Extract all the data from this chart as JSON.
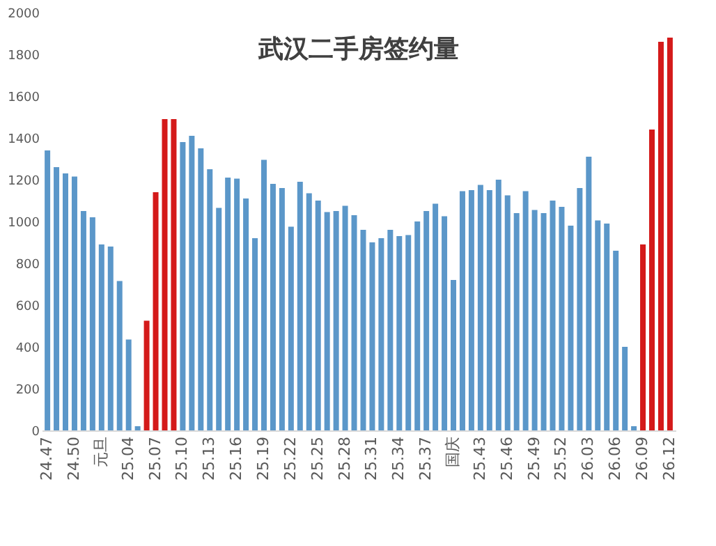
{
  "chart_data": {
    "type": "bar",
    "title": "武汉二手房签约量",
    "categories": [
      "24.47",
      null,
      null,
      "24.50",
      null,
      null,
      "元旦",
      null,
      null,
      "25.04",
      null,
      null,
      "25.07",
      null,
      null,
      "25.10",
      null,
      null,
      "25.13",
      null,
      null,
      "25.16",
      null,
      null,
      "25.19",
      null,
      null,
      "25.22",
      null,
      null,
      "25.25",
      null,
      null,
      "25.28",
      null,
      null,
      "25.31",
      null,
      null,
      "25.34",
      null,
      null,
      "25.37",
      null,
      null,
      "国庆",
      null,
      null,
      "25.43",
      null,
      null,
      "25.46",
      null,
      null,
      "25.49",
      null,
      null,
      "25.52",
      null,
      null,
      "26.03",
      null,
      null,
      "26.06",
      null,
      null,
      "26.09",
      null,
      null,
      "26.12"
    ],
    "values": [
      1340,
      1260,
      1230,
      1215,
      1050,
      1020,
      890,
      880,
      715,
      435,
      20,
      525,
      1140,
      1490,
      1490,
      1380,
      1410,
      1350,
      1250,
      1065,
      1210,
      1205,
      1110,
      920,
      1295,
      1180,
      1160,
      975,
      1190,
      1135,
      1100,
      1045,
      1050,
      1075,
      1030,
      960,
      900,
      920,
      960,
      930,
      935,
      1000,
      1050,
      1085,
      1025,
      720,
      1145,
      1150,
      1175,
      1150,
      1200,
      1125,
      1040,
      1145,
      1055,
      1040,
      1100,
      1070,
      980,
      1160,
      1310,
      1005,
      990,
      860,
      400,
      20,
      890,
      1440,
      1860,
      1880
    ],
    "colors": [
      "#5b97c9",
      "#5b97c9",
      "#5b97c9",
      "#5b97c9",
      "#5b97c9",
      "#5b97c9",
      "#5b97c9",
      "#5b97c9",
      "#5b97c9",
      "#5b97c9",
      "#5b97c9",
      "#d41a1a",
      "#d41a1a",
      "#d41a1a",
      "#d41a1a",
      "#5b97c9",
      "#5b97c9",
      "#5b97c9",
      "#5b97c9",
      "#5b97c9",
      "#5b97c9",
      "#5b97c9",
      "#5b97c9",
      "#5b97c9",
      "#5b97c9",
      "#5b97c9",
      "#5b97c9",
      "#5b97c9",
      "#5b97c9",
      "#5b97c9",
      "#5b97c9",
      "#5b97c9",
      "#5b97c9",
      "#5b97c9",
      "#5b97c9",
      "#5b97c9",
      "#5b97c9",
      "#5b97c9",
      "#5b97c9",
      "#5b97c9",
      "#5b97c9",
      "#5b97c9",
      "#5b97c9",
      "#5b97c9",
      "#5b97c9",
      "#5b97c9",
      "#5b97c9",
      "#5b97c9",
      "#5b97c9",
      "#5b97c9",
      "#5b97c9",
      "#5b97c9",
      "#5b97c9",
      "#5b97c9",
      "#5b97c9",
      "#5b97c9",
      "#5b97c9",
      "#5b97c9",
      "#5b97c9",
      "#5b97c9",
      "#5b97c9",
      "#5b97c9",
      "#5b97c9",
      "#5b97c9",
      "#5b97c9",
      "#5b97c9",
      "#d41a1a",
      "#d41a1a",
      "#d41a1a",
      "#d41a1a"
    ],
    "ylim": [
      0,
      2000
    ],
    "yticks": [
      0,
      200,
      400,
      600,
      800,
      1000,
      1200,
      1400,
      1600,
      1800,
      2000
    ],
    "grid": false
  }
}
